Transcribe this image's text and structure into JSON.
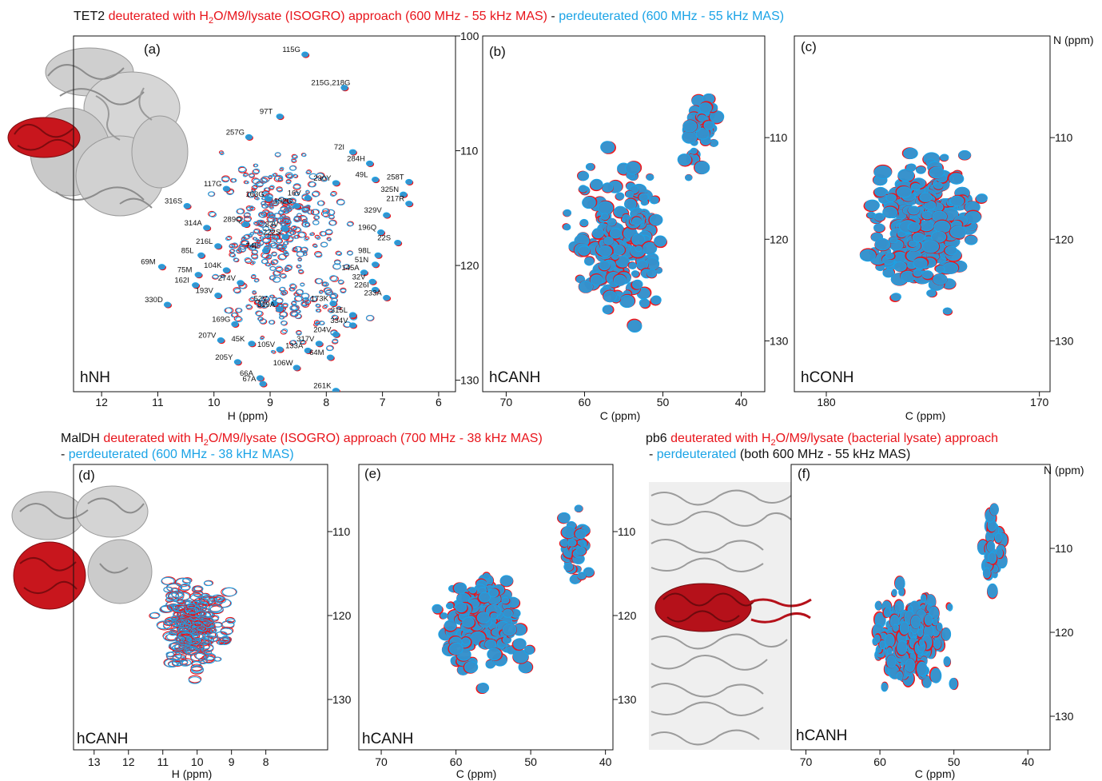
{
  "colors": {
    "red": "#e8141b",
    "blue": "#1aa3e6",
    "black": "#111111",
    "grey": "#a9a9a9"
  },
  "titles": {
    "top": {
      "lead": "TET2 ",
      "red_a": "deuterated with H",
      "sub1": "2",
      "red_b": "O/M9/lysate (ISOGRO) approach (600 MHz - 55 kHz MAS)",
      "sep": "  -  ",
      "blue": "perdeuterated (600 MHz - 55 kHz MAS)"
    },
    "mid_left": {
      "lead": "MalDH ",
      "red_a": "deuterated with H",
      "sub1": "2",
      "red_b": "O/M9/lysate (ISOGRO) approach  (700 MHz - 38 kHz MAS)",
      "dash": "-  ",
      "blue": "perdeuterated (600 MHz - 38 kHz MAS)"
    },
    "mid_right": {
      "lead": "pb6 ",
      "red_a": "deuterated with H",
      "sub1": "2",
      "red_b": "O/M9/lysate (bacterial lysate) approach",
      "dash": "-  ",
      "blue": "perdeuterated",
      "black": " (both 600 MHz - 55 kHz MAS)"
    }
  },
  "chart_data": [
    {
      "panel": "(a)",
      "type": "scatter",
      "experiment": "hNH",
      "xlabel": "H (ppm)",
      "ylabel": "",
      "xlim": [
        12.5,
        5.7
      ],
      "ylim": [
        100,
        131
      ],
      "xticks": [
        "12",
        "11",
        "10",
        "9",
        "8",
        "7",
        "6"
      ],
      "xtick_values": [
        12,
        11,
        10,
        9,
        8,
        7,
        6
      ],
      "yticks": [
        "100",
        "110",
        "120",
        "130"
      ],
      "ytick_values": [
        100,
        110,
        120,
        130
      ],
      "assignments": [
        {
          "label": "115G",
          "x": 8.45,
          "y": 101.4
        },
        {
          "label": "215G,218G",
          "x": 7.75,
          "y": 104.3
        },
        {
          "label": "97T",
          "x": 8.9,
          "y": 106.8
        },
        {
          "label": "257G",
          "x": 9.45,
          "y": 108.6
        },
        {
          "label": "72I",
          "x": 7.6,
          "y": 109.9
        },
        {
          "label": "284H",
          "x": 7.3,
          "y": 110.9
        },
        {
          "label": "230Y",
          "x": 7.9,
          "y": 112.6
        },
        {
          "label": "49L",
          "x": 7.2,
          "y": 112.3
        },
        {
          "label": "258T",
          "x": 6.6,
          "y": 112.5
        },
        {
          "label": "117G",
          "x": 9.85,
          "y": 113.1
        },
        {
          "label": "163G",
          "x": 9.1,
          "y": 114.0
        },
        {
          "label": "16V",
          "x": 8.4,
          "y": 113.9
        },
        {
          "label": "325N",
          "x": 6.7,
          "y": 113.6
        },
        {
          "label": "316S",
          "x": 10.55,
          "y": 114.6
        },
        {
          "label": "192G",
          "x": 8.6,
          "y": 114.6
        },
        {
          "label": "217R",
          "x": 6.6,
          "y": 114.4
        },
        {
          "label": "329V",
          "x": 7.0,
          "y": 115.4
        },
        {
          "label": "289Q",
          "x": 9.5,
          "y": 116.2
        },
        {
          "label": "33V",
          "x": 8.8,
          "y": 116.6
        },
        {
          "label": "196Q",
          "x": 7.1,
          "y": 116.9
        },
        {
          "label": "314A",
          "x": 10.2,
          "y": 116.5
        },
        {
          "label": "222S",
          "x": 8.8,
          "y": 117.3
        },
        {
          "label": "22S",
          "x": 6.8,
          "y": 117.8
        },
        {
          "label": "216L",
          "x": 10.0,
          "y": 118.1
        },
        {
          "label": "74L",
          "x": 9.15,
          "y": 118.5
        },
        {
          "label": "98L",
          "x": 7.15,
          "y": 118.9
        },
        {
          "label": "85L",
          "x": 10.3,
          "y": 118.9
        },
        {
          "label": "51N",
          "x": 7.2,
          "y": 119.7
        },
        {
          "label": "69M",
          "x": 11.0,
          "y": 119.9
        },
        {
          "label": "104K",
          "x": 9.85,
          "y": 120.2
        },
        {
          "label": "145A",
          "x": 7.4,
          "y": 120.4
        },
        {
          "label": "75M",
          "x": 10.35,
          "y": 120.6
        },
        {
          "label": "32V",
          "x": 7.25,
          "y": 121.2
        },
        {
          "label": "162I",
          "x": 10.4,
          "y": 121.5
        },
        {
          "label": "274V",
          "x": 9.6,
          "y": 121.3
        },
        {
          "label": "226I",
          "x": 7.2,
          "y": 121.9
        },
        {
          "label": "193V",
          "x": 10.0,
          "y": 122.4
        },
        {
          "label": "233A",
          "x": 7.0,
          "y": 122.6
        },
        {
          "label": "330D",
          "x": 10.9,
          "y": 123.2
        },
        {
          "label": "52V",
          "x": 9.0,
          "y": 123.1
        },
        {
          "label": "173K",
          "x": 7.95,
          "y": 123.1
        },
        {
          "label": "319A",
          "x": 8.9,
          "y": 123.6
        },
        {
          "label": "315L",
          "x": 7.6,
          "y": 124.1
        },
        {
          "label": "169G",
          "x": 9.7,
          "y": 124.9
        },
        {
          "label": "334V",
          "x": 7.6,
          "y": 125.0
        },
        {
          "label": "204V",
          "x": 7.9,
          "y": 125.8
        },
        {
          "label": "207V",
          "x": 9.95,
          "y": 126.3
        },
        {
          "label": "45K",
          "x": 9.4,
          "y": 126.6
        },
        {
          "label": "317V",
          "x": 8.2,
          "y": 126.6
        },
        {
          "label": "105V",
          "x": 8.9,
          "y": 127.1
        },
        {
          "label": "133A",
          "x": 8.4,
          "y": 127.2
        },
        {
          "label": "64M",
          "x": 8.0,
          "y": 127.8
        },
        {
          "label": "205Y",
          "x": 9.65,
          "y": 128.2
        },
        {
          "label": "106W",
          "x": 8.6,
          "y": 128.7
        },
        {
          "label": "66A",
          "x": 9.25,
          "y": 129.6
        },
        {
          "label": "67A",
          "x": 9.2,
          "y": 130.1
        },
        {
          "label": "261K",
          "x": 7.9,
          "y": 130.7
        }
      ]
    },
    {
      "panel": "(b)",
      "type": "scatter",
      "experiment": "hCANH",
      "xlabel": "C (ppm)",
      "ylabel": "",
      "xlim": [
        73,
        37
      ],
      "ylim": [
        100,
        135
      ],
      "xticks": [
        "70",
        "60",
        "50",
        "40"
      ],
      "xtick_values": [
        70,
        60,
        50,
        40
      ],
      "yticks": [
        "110",
        "120",
        "130"
      ],
      "ytick_values": [
        110,
        120,
        130
      ]
    },
    {
      "panel": "(c)",
      "type": "scatter",
      "experiment": "hCONH",
      "xlabel": "C (ppm)",
      "ylabel": "N (ppm)",
      "xlim": [
        181.5,
        169.5
      ],
      "ylim": [
        100,
        135
      ],
      "xticks": [
        "180",
        "170"
      ],
      "xtick_values": [
        180,
        170
      ],
      "yticks": [
        "110",
        "120",
        "130"
      ],
      "ytick_values": [
        110,
        120,
        130
      ]
    },
    {
      "panel": "(d)",
      "type": "scatter",
      "experiment": "hCANH",
      "xlabel": "H (ppm)",
      "ylabel": "",
      "xlim": [
        13.6,
        6.2
      ],
      "ylim": [
        102,
        136
      ],
      "xticks": [
        "13",
        "12",
        "11",
        "10",
        "9",
        "8"
      ],
      "xtick_values": [
        13,
        12,
        11,
        10,
        9,
        8
      ],
      "yticks": [
        "110",
        "120",
        "130"
      ],
      "ytick_values": [
        110,
        120,
        130
      ]
    },
    {
      "panel": "(e)",
      "type": "scatter",
      "experiment": "hCANH",
      "xlabel": "C (ppm)",
      "ylabel": "",
      "xlim": [
        73,
        39
      ],
      "ylim": [
        102,
        136
      ],
      "xticks": [
        "70",
        "60",
        "50",
        "40"
      ],
      "xtick_values": [
        70,
        60,
        50,
        40
      ],
      "yticks": [
        "110",
        "120",
        "130"
      ],
      "ytick_values": [
        110,
        120,
        130
      ]
    },
    {
      "panel": "(f)",
      "type": "scatter",
      "experiment": "hCANH",
      "xlabel": "C (ppm)",
      "ylabel": "N (ppm)",
      "xlim": [
        72,
        37
      ],
      "ylim": [
        100,
        134
      ],
      "xticks": [
        "70",
        "60",
        "50",
        "40"
      ],
      "xtick_values": [
        70,
        60,
        50,
        40
      ],
      "yticks": [
        "110",
        "120",
        "130"
      ],
      "ytick_values": [
        110,
        120,
        130
      ]
    }
  ]
}
